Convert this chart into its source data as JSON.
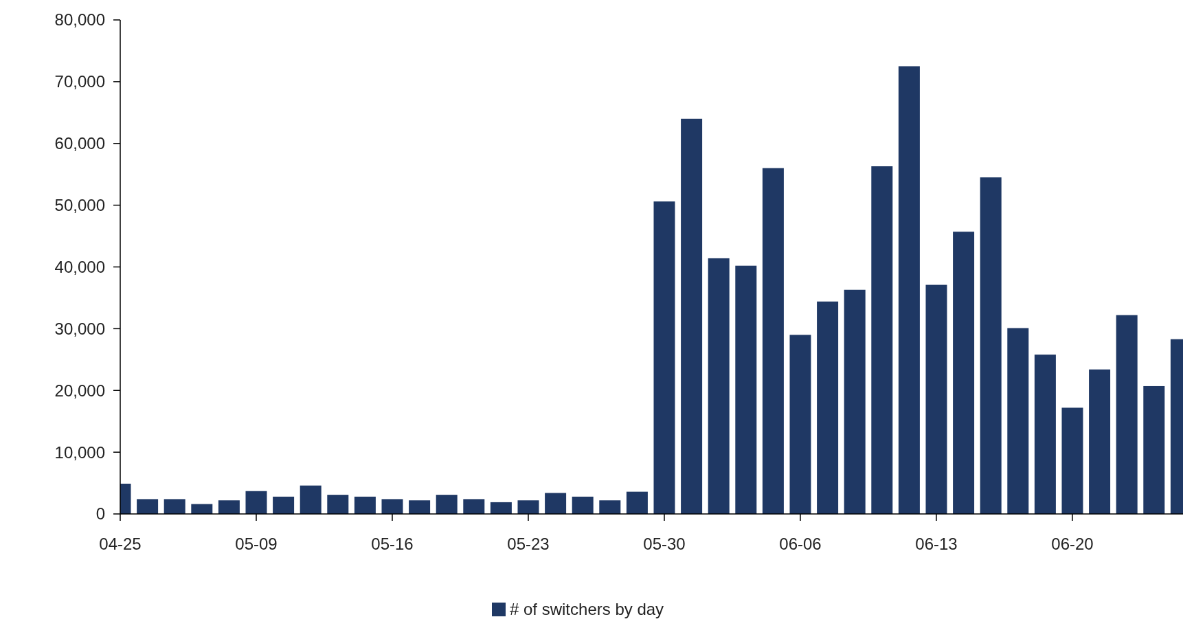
{
  "chart_data": {
    "type": "bar",
    "categories": [
      "04-25",
      null,
      null,
      null,
      null,
      "05-09",
      null,
      null,
      null,
      null,
      "05-16",
      null,
      null,
      null,
      null,
      "05-23",
      null,
      null,
      null,
      null,
      "05-30",
      null,
      null,
      null,
      null,
      "06-06",
      null,
      null,
      null,
      null,
      "06-13",
      null,
      null,
      null,
      null,
      "06-20",
      null,
      null,
      null,
      null
    ],
    "series": [
      {
        "name": "# of switchers by day",
        "color": "#1f3864",
        "values": [
          4900,
          2400,
          2400,
          1600,
          2200,
          3700,
          2800,
          4600,
          3100,
          2800,
          2400,
          2200,
          3100,
          2400,
          1900,
          2200,
          3400,
          2800,
          2200,
          3600,
          50600,
          64000,
          41400,
          40200,
          56000,
          29000,
          34400,
          36300,
          56300,
          72500,
          37100,
          45700,
          54500,
          30100,
          25800,
          17200,
          23400,
          32200,
          20700,
          28300
        ]
      }
    ],
    "ylim": [
      0,
      80000
    ],
    "yticks": [
      {
        "value": 0,
        "label": "0"
      },
      {
        "value": 10000,
        "label": "10,000"
      },
      {
        "value": 20000,
        "label": "20,000"
      },
      {
        "value": 30000,
        "label": "30,000"
      },
      {
        "value": 40000,
        "label": "40,000"
      },
      {
        "value": 50000,
        "label": "50,000"
      },
      {
        "value": 60000,
        "label": "60,000"
      },
      {
        "value": 70000,
        "label": "70,000"
      },
      {
        "value": 80000,
        "label": "80,000"
      }
    ],
    "grid": false,
    "legend": "bottom"
  }
}
